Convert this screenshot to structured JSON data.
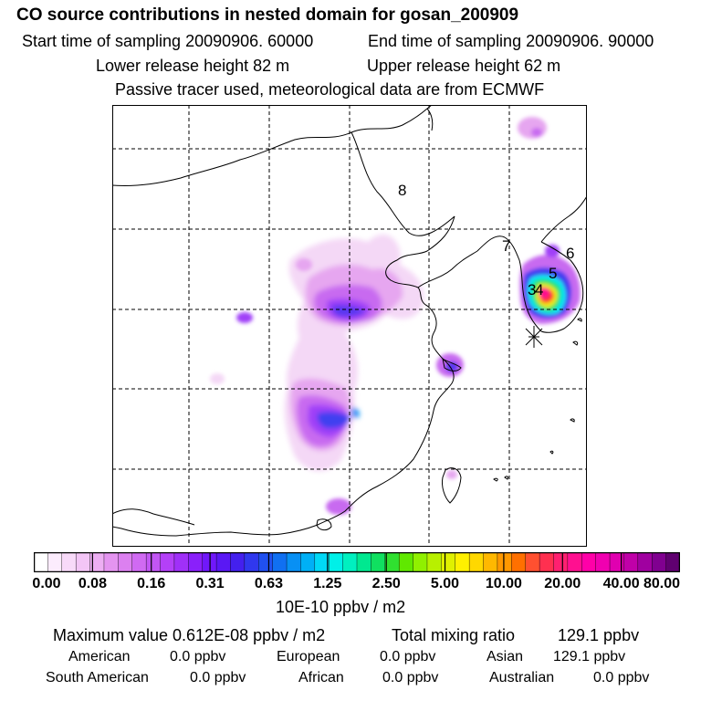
{
  "header": {
    "title": "CO  source contributions in nested domain for gosan_200909",
    "start_label": "Start time of sampling 20090906. 60000",
    "end_label": "End time of sampling 20090906. 90000",
    "lower_label": "Lower release height   82 m",
    "upper_label": "Upper release height   62 m",
    "tracer_note": "Passive tracer used, meteorological data are from ECMWF"
  },
  "map": {
    "region_labels": [
      "8",
      "7",
      "6",
      "5",
      "3",
      "4"
    ],
    "receptor_marker": "asterisk-icon",
    "colors": {
      "pale_lilac": "#f4d8f6",
      "light_violet": "#e6a6f0",
      "violet": "#c86af0",
      "purple": "#a040f8",
      "blue": "#4040f0",
      "cyan": "#00e8f0",
      "green": "#20e060",
      "yellow": "#f0f000",
      "red": "#ff3030",
      "magenta": "#ff1090"
    }
  },
  "legend": {
    "ticks": [
      "0.00",
      "0.08",
      "0.16",
      "0.31",
      "0.63",
      "1.25",
      "2.50",
      "5.00",
      "10.00",
      "20.00",
      "40.00",
      "80.00"
    ],
    "unit_label": "10E-10 ppbv / m2",
    "colors": [
      "#ffffff",
      "#fcecfd",
      "#f8daf9",
      "#f3c5f6",
      "#edaef3",
      "#e494f0",
      "#dc80f0",
      "#d06af2",
      "#c256f4",
      "#b440f7",
      "#a030f8",
      "#8a20fa",
      "#7018fa",
      "#5a18f4",
      "#4420ee",
      "#3038ee",
      "#2050f0",
      "#1070f2",
      "#0890f4",
      "#00b0f6",
      "#00d8f6",
      "#00f0e8",
      "#00f0c0",
      "#00e890",
      "#10e060",
      "#30e030",
      "#60e800",
      "#90f000",
      "#b8f000",
      "#e0f000",
      "#fff000",
      "#ffd800",
      "#ffb800",
      "#ff9800",
      "#ff7000",
      "#ff5030",
      "#ff3050",
      "#ff2070",
      "#ff1090",
      "#ff00a8",
      "#f000b0",
      "#e000b0",
      "#c000a8",
      "#a000a0",
      "#800090",
      "#600070"
    ]
  },
  "summary": {
    "max_label": "Maximum value  0.612E-08 ppbv / m2",
    "total_label": "Total mixing ratio",
    "total_value": "129.1 ppbv"
  },
  "regions": [
    {
      "name": "American",
      "value": "0.0 ppbv"
    },
    {
      "name": "European",
      "value": "0.0 ppbv"
    },
    {
      "name": "Asian",
      "value": "129.1 ppbv"
    },
    {
      "name": "South American",
      "value": "0.0 ppbv"
    },
    {
      "name": "African",
      "value": "0.0 ppbv"
    },
    {
      "name": "Australian",
      "value": "0.0 ppbv"
    }
  ]
}
